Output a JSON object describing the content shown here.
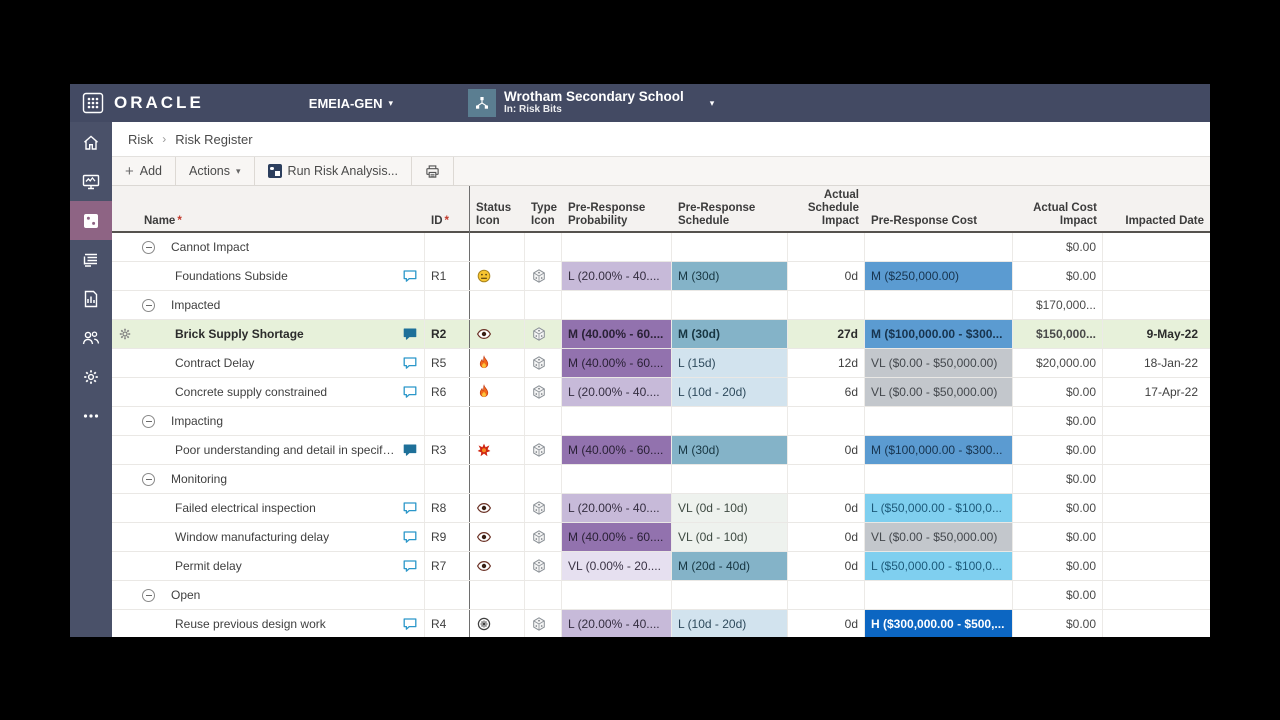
{
  "topbar": {
    "brand": "ORACLE",
    "org_label": "EMEIA-GEN",
    "project_name": "Wrotham Secondary School",
    "project_context": "In: Risk Bits"
  },
  "breadcrumb": {
    "section": "Risk",
    "separator": "›",
    "page": "Risk Register"
  },
  "toolbar": {
    "add_label": "Add",
    "actions_label": "Actions",
    "run_risk_label": "Run Risk Analysis...",
    "print_icon": "printer-icon"
  },
  "sidebar": {
    "items": [
      {
        "name": "home",
        "icon": "home-icon",
        "selected": false
      },
      {
        "name": "dashboard",
        "icon": "dashboard-icon",
        "selected": false
      },
      {
        "name": "risk",
        "icon": "dice-icon",
        "selected": true
      },
      {
        "name": "activity-feed",
        "icon": "activity-log-icon",
        "selected": false
      },
      {
        "name": "reports",
        "icon": "report-icon",
        "selected": false
      },
      {
        "name": "team",
        "icon": "team-icon",
        "selected": false
      },
      {
        "name": "settings",
        "icon": "gear-icon",
        "selected": false
      },
      {
        "name": "more",
        "icon": "ellipsis-icon",
        "selected": false
      }
    ]
  },
  "table": {
    "headers": [
      {
        "text": "Name",
        "required": true,
        "align": "left"
      },
      {
        "text": "ID",
        "required": true,
        "align": "left",
        "split": true
      },
      {
        "text": "Status\nIcon",
        "align": "left"
      },
      {
        "text": "Type\nIcon",
        "align": "left"
      },
      {
        "text": "Pre-Response\nProbability",
        "align": "left"
      },
      {
        "text": "Pre-Response\nSchedule",
        "align": "left"
      },
      {
        "text": "Actual\nSchedule\nImpact",
        "align": "right"
      },
      {
        "text": "Pre-Response Cost",
        "align": "left"
      },
      {
        "text": "Actual Cost\nImpact",
        "align": "right"
      },
      {
        "text": "Impacted Date",
        "align": "right"
      }
    ],
    "rows": [
      {
        "type": "group",
        "name": "Cannot Impact",
        "cost_impact": "$0.00"
      },
      {
        "type": "risk",
        "name": "Foundations Subside",
        "comment": "comment-outline-icon",
        "id": "R1",
        "status_icon": "face-neutral-icon",
        "type_icon": "dice-icon",
        "prob": {
          "text": "L (20.00% - 40....",
          "level": "l"
        },
        "sched": {
          "text": "M (30d)",
          "level": "m"
        },
        "sched_impact": "0d",
        "cost": {
          "text": "M ($250,000.00)",
          "level": "m"
        },
        "cost_impact": "$0.00",
        "impacted_date": ""
      },
      {
        "type": "group",
        "name": "Impacted",
        "cost_impact": "$170,000..."
      },
      {
        "type": "risk",
        "selected": true,
        "name": "Brick Supply Shortage",
        "comment": "comment-filled-icon",
        "id": "R2",
        "status_icon": "eye-icon",
        "type_icon": "dice-icon",
        "prob": {
          "text": "M (40.00% - 60....",
          "level": "m"
        },
        "sched": {
          "text": "M (30d)",
          "level": "m"
        },
        "sched_impact": "27d",
        "cost": {
          "text": "M ($100,000.00 - $300...",
          "level": "m"
        },
        "cost_impact": "$150,000...",
        "impacted_date": "9-May-22"
      },
      {
        "type": "risk",
        "name": "Contract Delay",
        "comment": "comment-outline-icon",
        "id": "R5",
        "status_icon": "flame-icon",
        "type_icon": "dice-icon",
        "prob": {
          "text": "M (40.00% - 60....",
          "level": "m"
        },
        "sched": {
          "text": "L (15d)",
          "level": "l"
        },
        "sched_impact": "12d",
        "cost": {
          "text": "VL ($0.00 - $50,000.00)",
          "level": "vl"
        },
        "cost_impact": "$20,000.00",
        "impacted_date": "18-Jan-22"
      },
      {
        "type": "risk",
        "name": "Concrete supply constrained",
        "comment": "comment-outline-icon",
        "id": "R6",
        "status_icon": "flame-icon",
        "type_icon": "dice-icon",
        "prob": {
          "text": "L (20.00% - 40....",
          "level": "l"
        },
        "sched": {
          "text": "L (10d - 20d)",
          "level": "l"
        },
        "sched_impact": "6d",
        "cost": {
          "text": "VL ($0.00 - $50,000.00)",
          "level": "vl"
        },
        "cost_impact": "$0.00",
        "impacted_date": "17-Apr-22"
      },
      {
        "type": "group",
        "name": "Impacting",
        "cost_impact": "$0.00"
      },
      {
        "type": "risk",
        "name": "Poor understanding and detail in specifi...",
        "comment": "comment-filled-icon",
        "id": "R3",
        "status_icon": "burst-icon",
        "type_icon": "dice-icon",
        "prob": {
          "text": "M (40.00% - 60....",
          "level": "m"
        },
        "sched": {
          "text": "M (30d)",
          "level": "m"
        },
        "sched_impact": "0d",
        "cost": {
          "text": "M ($100,000.00 - $300...",
          "level": "m"
        },
        "cost_impact": "$0.00",
        "impacted_date": ""
      },
      {
        "type": "group",
        "name": "Monitoring",
        "cost_impact": "$0.00"
      },
      {
        "type": "risk",
        "name": "Failed electrical inspection",
        "comment": "comment-outline-icon",
        "id": "R8",
        "status_icon": "eye-icon",
        "type_icon": "dice-icon",
        "prob": {
          "text": "L (20.00% - 40....",
          "level": "l"
        },
        "sched": {
          "text": "VL (0d - 10d)",
          "level": "vl"
        },
        "sched_impact": "0d",
        "cost": {
          "text": "L ($50,000.00 - $100,0...",
          "level": "l"
        },
        "cost_impact": "$0.00",
        "impacted_date": ""
      },
      {
        "type": "risk",
        "name": "Window manufacturing delay",
        "comment": "comment-outline-icon",
        "id": "R9",
        "status_icon": "eye-icon",
        "type_icon": "dice-icon",
        "prob": {
          "text": "M (40.00% - 60....",
          "level": "m"
        },
        "sched": {
          "text": "VL (0d - 10d)",
          "level": "vl"
        },
        "sched_impact": "0d",
        "cost": {
          "text": "VL ($0.00 - $50,000.00)",
          "level": "vl"
        },
        "cost_impact": "$0.00",
        "impacted_date": ""
      },
      {
        "type": "risk",
        "name": "Permit delay",
        "comment": "comment-outline-icon",
        "id": "R7",
        "status_icon": "eye-icon",
        "type_icon": "dice-icon",
        "prob": {
          "text": "VL (0.00% - 20....",
          "level": "vl"
        },
        "sched": {
          "text": "M (20d - 40d)",
          "level": "m"
        },
        "sched_impact": "0d",
        "cost": {
          "text": "L ($50,000.00 - $100,0...",
          "level": "l"
        },
        "cost_impact": "$0.00",
        "impacted_date": ""
      },
      {
        "type": "group",
        "name": "Open",
        "cost_impact": "$0.00"
      },
      {
        "type": "risk",
        "name": "Reuse previous design work",
        "comment": "comment-outline-icon",
        "id": "R4",
        "status_icon": "open-gear-icon",
        "type_icon": "dice-icon",
        "prob": {
          "text": "L (20.00% - 40....",
          "level": "l"
        },
        "sched": {
          "text": "L (10d - 20d)",
          "level": "l"
        },
        "sched_impact": "0d",
        "cost": {
          "text": "H ($300,000.00 - $500,...",
          "level": "h"
        },
        "cost_impact": "$0.00",
        "impacted_date": ""
      }
    ]
  },
  "colors": {
    "topbar_bg": "#434a63",
    "sidebar_bg": "#4a5169",
    "sidebar_selected_bg": "#8e6484",
    "selected_row_bg": "#e7f1da",
    "prob_vl": "#e6e0f0",
    "prob_l": "#c7bad9",
    "prob_m": "#9272ae",
    "sched_vl": "#eef2ee",
    "sched_l": "#d2e3ee",
    "sched_m": "#84b3c8",
    "cost_vl": "#c3c7cc",
    "cost_l": "#7fcfef",
    "cost_m": "#5b9bd1",
    "cost_h": "#0c66c2"
  }
}
